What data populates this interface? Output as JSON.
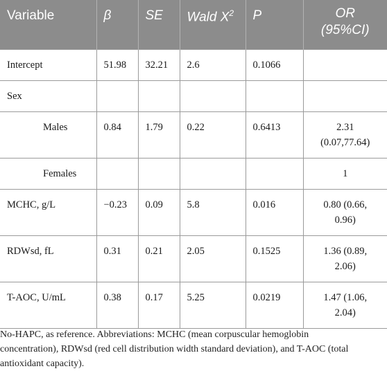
{
  "header": {
    "variable": "Variable",
    "beta": "β",
    "se": "SE",
    "wald": "Wald X",
    "wald_sup": "2",
    "p": "P",
    "or_line1": "OR",
    "or_line2": "(95%CI)"
  },
  "rows": [
    {
      "label": "Intercept",
      "beta": "51.98",
      "se": "32.21",
      "wald": "2.6",
      "p": "0.1066",
      "or1": "",
      "or2": ""
    },
    {
      "label": "Sex",
      "beta": "",
      "se": "",
      "wald": "",
      "p": "",
      "or1": "",
      "or2": ""
    },
    {
      "label": "Males",
      "beta": "0.84",
      "se": "1.79",
      "wald": "0.22",
      "p": "0.6413",
      "or1": "2.31",
      "or2": "(0.07,77.64)"
    },
    {
      "label": "Females",
      "beta": "",
      "se": "",
      "wald": "",
      "p": "",
      "or1": "1",
      "or2": ""
    },
    {
      "label": "MCHC, g/L",
      "beta": "−0.23",
      "se": "0.09",
      "wald": "5.8",
      "p": "0.016",
      "or1": "0.80 (0.66,",
      "or2": "0.96)"
    },
    {
      "label": "RDWsd, fL",
      "beta": "0.31",
      "se": "0.21",
      "wald": "2.05",
      "p": "0.1525",
      "or1": "1.36 (0.89,",
      "or2": "2.06)"
    },
    {
      "label": "T-AOC, U/mL",
      "beta": "0.38",
      "se": "0.17",
      "wald": "5.25",
      "p": "0.0219",
      "or1": "1.47 (1.06,",
      "or2": "2.04)"
    }
  ],
  "footnote": {
    "line1": "No-HAPC, as reference. Abbreviations: MCHC (mean corpuscular hemoglobin",
    "line2": "concentration), RDWsd (red cell distribution width standard deviation), and T-AOC (total",
    "line3": "antioxidant capacity)."
  }
}
